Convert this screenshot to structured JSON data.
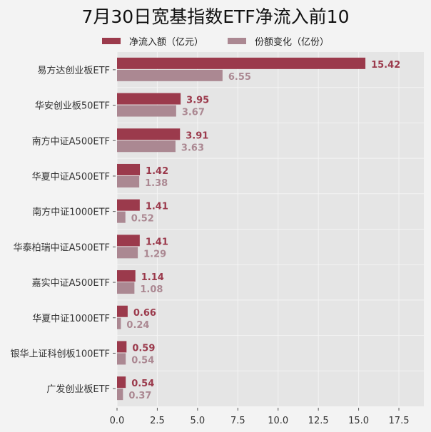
{
  "chart_data": {
    "type": "bar",
    "orientation": "horizontal",
    "title": "7月30日宽基指数ETF净流入前10",
    "categories": [
      "易方达创业板ETF",
      "华安创业板50ETF",
      "南方中证A500ETF",
      "华夏中证A500ETF",
      "南方中证1000ETF",
      "华泰柏瑞中证A500ETF",
      "嘉实中证A500ETF",
      "华夏中证1000ETF",
      "银华上证科创板100ETF",
      "广发创业板ETF"
    ],
    "series": [
      {
        "name": "净流入额（亿元）",
        "color": "#9b3a4c",
        "values": [
          15.42,
          3.95,
          3.91,
          1.42,
          1.41,
          1.41,
          1.14,
          0.66,
          0.59,
          0.54
        ]
      },
      {
        "name": "份额变化（亿份）",
        "color": "#ab8892",
        "values": [
          6.55,
          3.67,
          3.63,
          1.38,
          0.52,
          1.29,
          1.08,
          0.24,
          0.54,
          0.37
        ]
      }
    ],
    "xlim": [
      0,
      19.05
    ],
    "xticks": [
      "0.0",
      "2.5",
      "5.0",
      "7.5",
      "10.0",
      "12.5",
      "15.0",
      "17.5"
    ],
    "grid": true,
    "legend": "top"
  }
}
